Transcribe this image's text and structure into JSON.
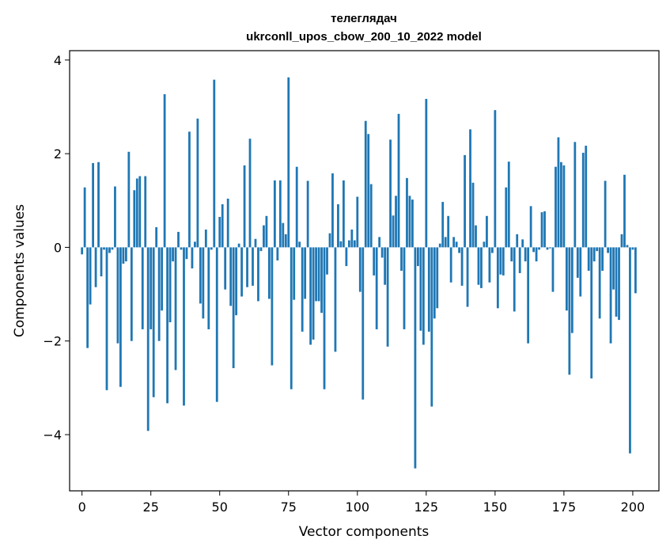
{
  "chart_data": {
    "type": "bar",
    "title_line1": "телеглядач",
    "title_line2": "ukrconll_upos_cbow_200_10_2022 model",
    "xlabel": "Vector components",
    "ylabel": "Components values",
    "xlim": [
      -4.5,
      209.5
    ],
    "ylim": [
      -5.2,
      4.2
    ],
    "xticks": [
      0,
      25,
      50,
      75,
      100,
      125,
      150,
      175,
      200
    ],
    "yticks": [
      -4,
      -2,
      0,
      2,
      4
    ],
    "xtick_labels": [
      "0",
      "25",
      "50",
      "75",
      "100",
      "125",
      "150",
      "175",
      "200"
    ],
    "ytick_labels": [
      "−4",
      "−2",
      "0",
      "2",
      "4"
    ],
    "bar_color": "#1f77b4",
    "grid": false,
    "values": [
      -0.15,
      1.28,
      -2.15,
      -1.22,
      1.8,
      -0.85,
      1.82,
      -0.62,
      -0.05,
      -3.05,
      -0.12,
      -0.05,
      1.3,
      -2.05,
      -2.98,
      -0.35,
      -0.3,
      2.04,
      -2.0,
      1.22,
      1.47,
      1.52,
      -1.75,
      1.52,
      -3.92,
      -1.75,
      -3.2,
      0.43,
      -2.0,
      -1.35,
      3.27,
      -3.33,
      -1.6,
      -0.3,
      -2.62,
      0.33,
      -0.05,
      -3.38,
      -0.25,
      2.47,
      -0.45,
      0.12,
      2.75,
      -1.2,
      -1.52,
      0.38,
      -1.75,
      -0.05,
      3.58,
      -3.3,
      0.65,
      0.92,
      -0.9,
      1.04,
      -1.25,
      -2.58,
      -1.45,
      0.08,
      -1.05,
      1.75,
      -0.85,
      2.32,
      -0.82,
      0.18,
      -1.15,
      -0.08,
      0.47,
      0.67,
      -1.1,
      -2.52,
      1.43,
      -0.28,
      1.43,
      0.52,
      0.28,
      3.63,
      -3.03,
      -1.12,
      1.72,
      0.12,
      -1.8,
      -1.1,
      1.42,
      -2.08,
      -1.97,
      -1.15,
      -1.15,
      -1.4,
      -3.03,
      -0.58,
      0.3,
      1.58,
      -2.23,
      0.92,
      0.13,
      1.43,
      -0.4,
      0.15,
      0.38,
      0.15,
      1.08,
      -0.95,
      -3.25,
      2.7,
      2.42,
      1.35,
      -0.6,
      -1.75,
      0.22,
      -0.22,
      -0.8,
      -2.12,
      2.3,
      0.68,
      1.1,
      2.85,
      -0.5,
      -1.75,
      1.48,
      1.1,
      1.02,
      -4.72,
      -0.4,
      -1.78,
      -2.08,
      3.17,
      -1.8,
      -3.4,
      -1.52,
      -1.3,
      0.08,
      0.97,
      0.22,
      0.67,
      -0.75,
      0.22,
      0.12,
      -0.12,
      -0.82,
      1.97,
      -1.27,
      2.52,
      1.38,
      0.47,
      -0.8,
      -0.87,
      0.12,
      0.67,
      -0.75,
      -0.12,
      2.93,
      -1.3,
      -0.58,
      -0.6,
      1.28,
      1.83,
      -0.3,
      -1.37,
      0.28,
      -0.55,
      0.17,
      -0.3,
      -2.05,
      0.88,
      -0.1,
      -0.3,
      -0.05,
      0.75,
      0.77,
      -0.05,
      -0.02,
      -0.95,
      1.72,
      2.35,
      1.82,
      1.75,
      -1.35,
      -2.72,
      -1.83,
      2.25,
      -0.65,
      -1.05,
      2.02,
      2.17,
      -0.5,
      -2.8,
      -0.3,
      -0.08,
      -1.52,
      -0.5,
      1.42,
      -0.12,
      -2.05,
      -0.9,
      -1.48,
      -1.55,
      0.28,
      1.55,
      0.05,
      -4.4,
      -0.05,
      -0.98
    ]
  }
}
